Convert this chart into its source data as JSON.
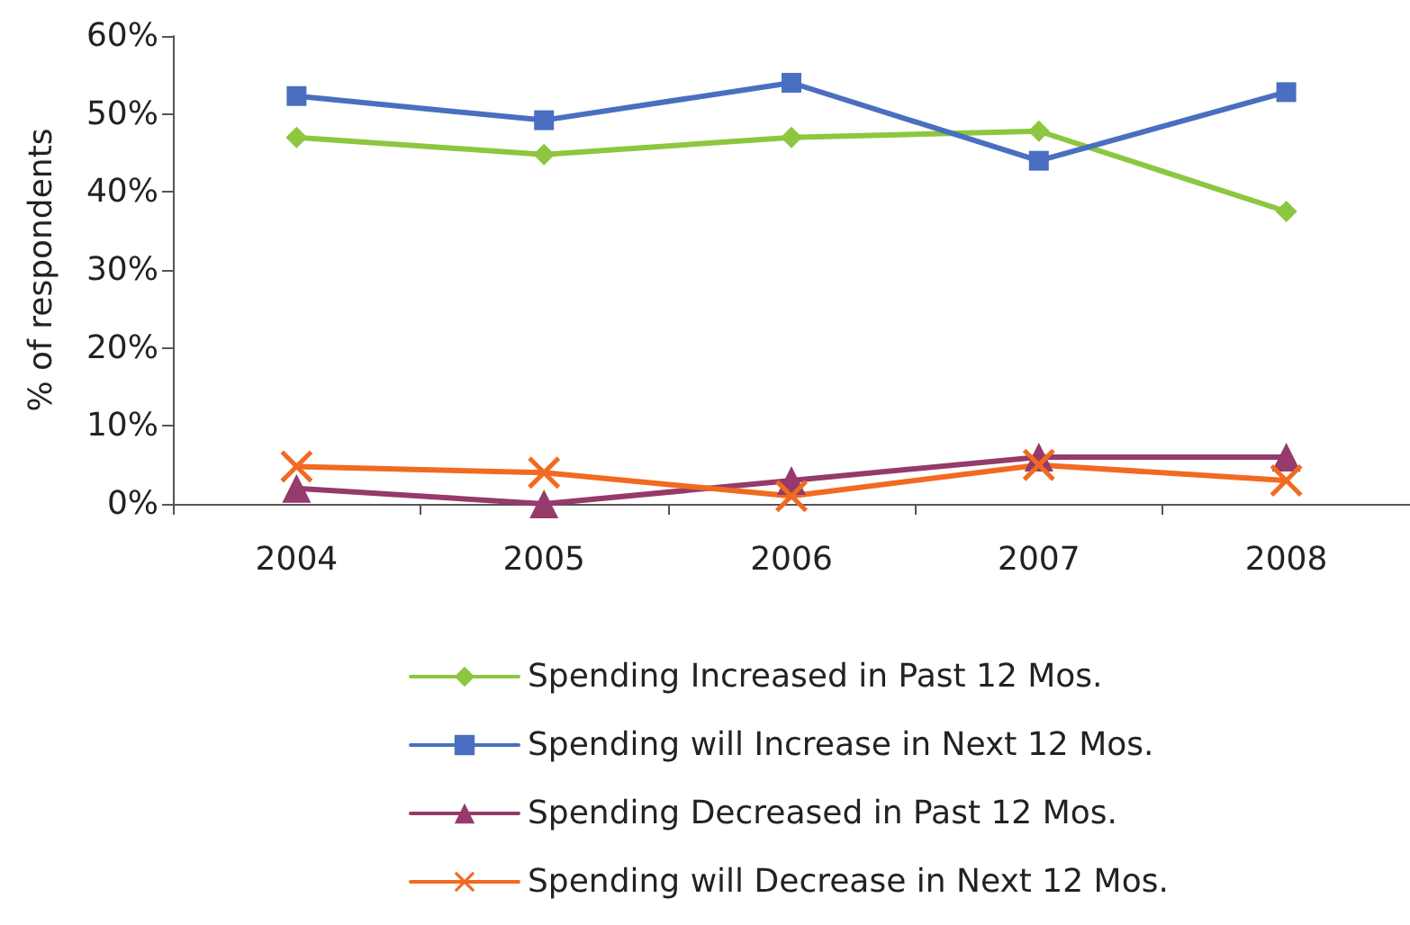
{
  "chart_data": {
    "type": "line",
    "ylabel": "% of respondents",
    "categories": [
      "2004",
      "2005",
      "2006",
      "2007",
      "2008"
    ],
    "series": [
      {
        "name": "Spending Increased in Past 12 Mos.",
        "color": "#8dc63f",
        "marker": "diamond",
        "values": [
          47,
          44.8,
          47,
          47.8,
          37.5
        ]
      },
      {
        "name": "Spending will Increase in Next 12 Mos.",
        "color": "#4a6fc0",
        "marker": "square",
        "values": [
          52.3,
          49.2,
          54,
          44,
          52.8
        ]
      },
      {
        "name": "Spending Decreased in Past 12 Mos.",
        "color": "#953a6a",
        "marker": "triangle",
        "values": [
          2,
          0,
          3,
          6,
          6
        ]
      },
      {
        "name": "Spending will Decrease in Next 12 Mos.",
        "color": "#f26a21",
        "marker": "cross",
        "values": [
          4.8,
          4,
          1,
          5,
          3
        ]
      }
    ],
    "ylim": [
      0,
      60
    ],
    "yticks": [
      {
        "value": 0,
        "label": "0%"
      },
      {
        "value": 10,
        "label": "10%"
      },
      {
        "value": 20,
        "label": "20%"
      },
      {
        "value": 30,
        "label": "30%"
      },
      {
        "value": 40,
        "label": "40%"
      },
      {
        "value": 50,
        "label": "50%"
      },
      {
        "value": 60,
        "label": "60%"
      }
    ],
    "grid": false,
    "legend": "bottom",
    "line_style": "solid"
  }
}
